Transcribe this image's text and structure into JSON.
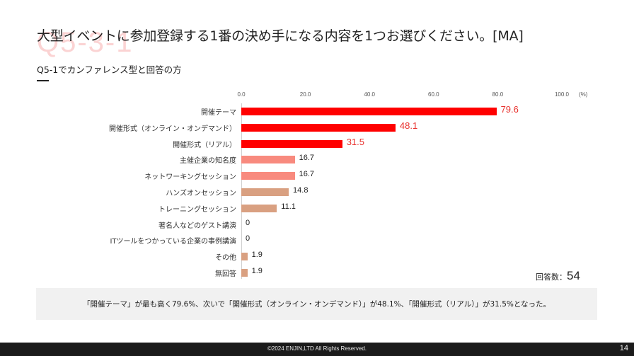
{
  "slide": {
    "watermark": "Q5-3-1",
    "title": "大型イベントに参加登録する1番の決め手になる内容を1つお選びください。[MA]",
    "subtitle": "Q5-1でカンファレンス型と回答の方",
    "respondents_label": "回答数：",
    "respondents_value": "54",
    "summary": "「開催テーマ」が最も高く79.6%、次いで「開催形式（オンライン・オンデマンド）」が48.1%、「開催形式（リアル）」が31.5%となった。",
    "footer": {
      "copyright": "©2024 ENJIN,LTD  All Rights Reserved.",
      "page_number": "14"
    }
  },
  "colors": {
    "top3": "#ff0000",
    "mid": "#f88a7e",
    "low": "#d9a081",
    "highlight_value": "#e8312d"
  },
  "chart_data": {
    "type": "bar",
    "orientation": "horizontal",
    "title": "大型イベントに参加登録する1番の決め手になる内容を1つお選びください。[MA]",
    "subtitle": "Q5-1でカンファレンス型と回答の方",
    "xlabel": "(%)",
    "ylabel": "",
    "xlim": [
      0,
      100
    ],
    "x_ticks": [
      "0.0",
      "20.0",
      "40.0",
      "60.0",
      "80.0",
      "100.0"
    ],
    "unit_label": "(%)",
    "grid": false,
    "legend": null,
    "categories": [
      "開催テーマ",
      "開催形式（オンライン・オンデマンド）",
      "開催形式（リアル）",
      "主催企業の知名度",
      "ネットワーキングセッション",
      "ハンズオンセッション",
      "トレーニングセッション",
      "著名人などのゲスト講演",
      "ITツールをつかっている企業の事例講演",
      "その他",
      "無回答"
    ],
    "values": [
      79.6,
      48.1,
      31.5,
      16.7,
      16.7,
      14.8,
      11.1,
      0,
      0,
      1.9,
      1.9
    ],
    "value_labels": [
      "79.6",
      "48.1",
      "31.5",
      "16.7",
      "16.7",
      "14.8",
      "11.1",
      "0",
      "0",
      "1.9",
      "1.9"
    ],
    "bar_colors": [
      "#ff0000",
      "#ff0000",
      "#ff0000",
      "#f88a7e",
      "#f88a7e",
      "#d9a081",
      "#d9a081",
      "#d9a081",
      "#d9a081",
      "#d9a081",
      "#d9a081"
    ],
    "highlighted": [
      true,
      true,
      true,
      false,
      false,
      false,
      false,
      false,
      false,
      false,
      false
    ],
    "n": 54
  }
}
